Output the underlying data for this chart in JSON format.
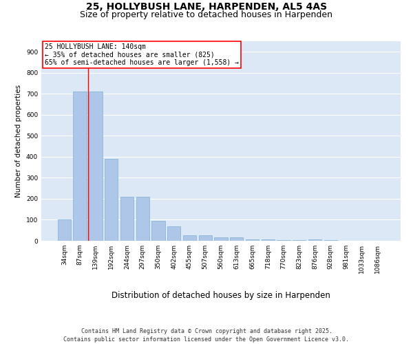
{
  "title1": "25, HOLLYBUSH LANE, HARPENDEN, AL5 4AS",
  "title2": "Size of property relative to detached houses in Harpenden",
  "xlabel": "Distribution of detached houses by size in Harpenden",
  "ylabel": "Number of detached properties",
  "categories": [
    "34sqm",
    "87sqm",
    "139sqm",
    "192sqm",
    "244sqm",
    "297sqm",
    "350sqm",
    "402sqm",
    "455sqm",
    "507sqm",
    "560sqm",
    "613sqm",
    "665sqm",
    "718sqm",
    "770sqm",
    "823sqm",
    "876sqm",
    "928sqm",
    "981sqm",
    "1033sqm",
    "1086sqm"
  ],
  "values": [
    100,
    710,
    710,
    390,
    210,
    210,
    95,
    68,
    27,
    27,
    15,
    15,
    8,
    8,
    3,
    3,
    5,
    2,
    1,
    1,
    1
  ],
  "bar_color": "#aec6e8",
  "bar_edge_color": "#7bafd4",
  "annotation_box_text": [
    "25 HOLLYBUSH LANE: 140sqm",
    "← 35% of detached houses are smaller (825)",
    "65% of semi-detached houses are larger (1,558) →"
  ],
  "annotation_box_color": "white",
  "annotation_box_edge_color": "red",
  "vline_color": "red",
  "ylim": [
    0,
    950
  ],
  "yticks": [
    0,
    100,
    200,
    300,
    400,
    500,
    600,
    700,
    800,
    900
  ],
  "background_color": "#dce8f5",
  "footer_text": "Contains HM Land Registry data © Crown copyright and database right 2025.\nContains public sector information licensed under the Open Government Licence v3.0.",
  "title_fontsize": 10,
  "subtitle_fontsize": 9,
  "xlabel_fontsize": 8.5,
  "ylabel_fontsize": 7.5,
  "tick_fontsize": 6.5,
  "annotation_fontsize": 7,
  "footer_fontsize": 6
}
